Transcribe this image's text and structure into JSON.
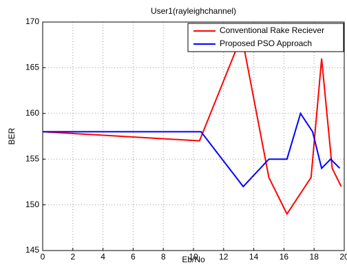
{
  "chart_data": {
    "type": "line",
    "title": "User1(rayleighchannel)",
    "xlabel": "Eb/No",
    "ylabel": "BER",
    "xlim": [
      0,
      20
    ],
    "xticks": [
      0,
      2,
      4,
      6,
      8,
      10,
      12,
      14,
      16,
      18,
      20
    ],
    "ylim": [
      145,
      170
    ],
    "yticks": [
      145,
      150,
      155,
      160,
      165,
      170
    ],
    "grid": true,
    "legend": "upper right",
    "series": [
      {
        "name": "Conventional Rake Reciever",
        "color": "#ff0000",
        "x": [
          0,
          10.4,
          13.2,
          15,
          16.2,
          17,
          17.8,
          18.5,
          19.2,
          19.8
        ],
        "values": [
          158,
          157,
          168.5,
          153,
          149,
          151,
          153,
          166,
          154,
          152
        ]
      },
      {
        "name": "Proposed PSO Approach",
        "color": "#0000ff",
        "x": [
          0,
          10.5,
          13.3,
          15,
          16.2,
          17.1,
          17.9,
          18.5,
          19.1,
          19.7
        ],
        "values": [
          158,
          158,
          152,
          155,
          155,
          160,
          158,
          154,
          155,
          154
        ]
      }
    ]
  }
}
